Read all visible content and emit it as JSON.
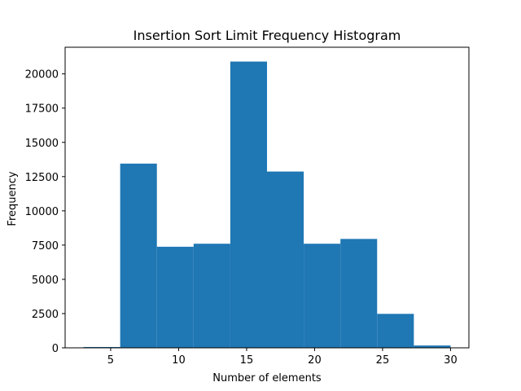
{
  "chart_data": {
    "type": "bar",
    "title": "Insertion Sort Limit Frequency Histogram",
    "xlabel": "Number of elements",
    "ylabel": "Frequency",
    "bin_edges": [
      3.0,
      5.7,
      8.4,
      11.1,
      13.8,
      16.5,
      19.2,
      21.9,
      24.6,
      27.3,
      30.0
    ],
    "values": [
      60,
      13450,
      7380,
      7600,
      20900,
      12870,
      7600,
      7950,
      2480,
      170
    ],
    "xlim": [
      1.65,
      31.35
    ],
    "ylim": [
      0,
      21945
    ],
    "xticks": [
      5,
      10,
      15,
      20,
      25,
      30
    ],
    "xtick_labels": [
      "5",
      "10",
      "15",
      "20",
      "25",
      "30"
    ],
    "yticks": [
      0,
      2500,
      5000,
      7500,
      10000,
      12500,
      15000,
      17500,
      20000
    ],
    "ytick_labels": [
      "0",
      "2500",
      "5000",
      "7500",
      "10000",
      "12500",
      "15000",
      "17500",
      "20000"
    ],
    "bar_color": "#1f77b4",
    "grid": false,
    "legend": "none"
  }
}
